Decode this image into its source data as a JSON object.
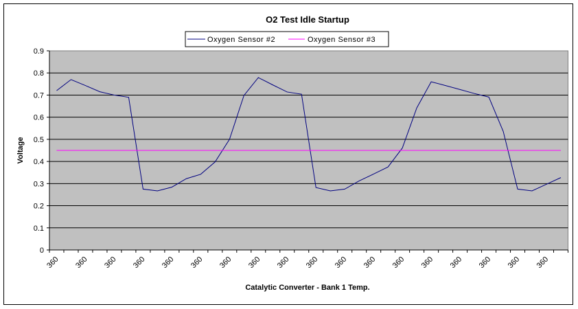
{
  "chart_data": {
    "type": "line",
    "title": "O2 Test Idle Startup",
    "xlabel": "Catalytic Converter - Bank 1 Temp.",
    "ylabel": "Voltage",
    "ylim": [
      0,
      0.9
    ],
    "yticks": [
      "0",
      "0.1",
      "0.2",
      "0.3",
      "0.4",
      "0.5",
      "0.6",
      "0.7",
      "0.8",
      "0.9"
    ],
    "grid": true,
    "legend_position": "top-center",
    "categories": [
      "360",
      "360",
      "360",
      "360",
      "360",
      "360",
      "360",
      "360",
      "360",
      "360",
      "360",
      "360",
      "360",
      "360",
      "360",
      "360",
      "360",
      "360",
      "360",
      "360",
      "360",
      "360",
      "360",
      "360",
      "360",
      "360",
      "360",
      "360",
      "360",
      "360",
      "360",
      "360",
      "360",
      "360",
      "360",
      "360"
    ],
    "series": [
      {
        "name": "Oxygen Sensor #2",
        "color": "#000080",
        "values": [
          0.72,
          0.77,
          0.743,
          0.715,
          0.7,
          0.69,
          0.275,
          0.267,
          0.284,
          0.322,
          0.342,
          0.398,
          0.5,
          0.698,
          0.779,
          0.746,
          0.714,
          0.704,
          0.282,
          0.267,
          0.275,
          0.312,
          0.343,
          0.375,
          0.461,
          0.642,
          0.76,
          0.743,
          0.725,
          0.707,
          0.691,
          0.536,
          0.275,
          0.267,
          0.297,
          0.327
        ]
      },
      {
        "name": "Oxygen Sensor #3",
        "color": "#FF00FF",
        "values": [
          0.45,
          0.45,
          0.45,
          0.45,
          0.45,
          0.45,
          0.45,
          0.45,
          0.45,
          0.45,
          0.45,
          0.45,
          0.45,
          0.45,
          0.45,
          0.45,
          0.45,
          0.45,
          0.45,
          0.45,
          0.45,
          0.45,
          0.45,
          0.45,
          0.45,
          0.45,
          0.45,
          0.45,
          0.45,
          0.45,
          0.45,
          0.45,
          0.45,
          0.45,
          0.45,
          0.45
        ]
      }
    ],
    "plot_background": "#C0C0C0"
  }
}
